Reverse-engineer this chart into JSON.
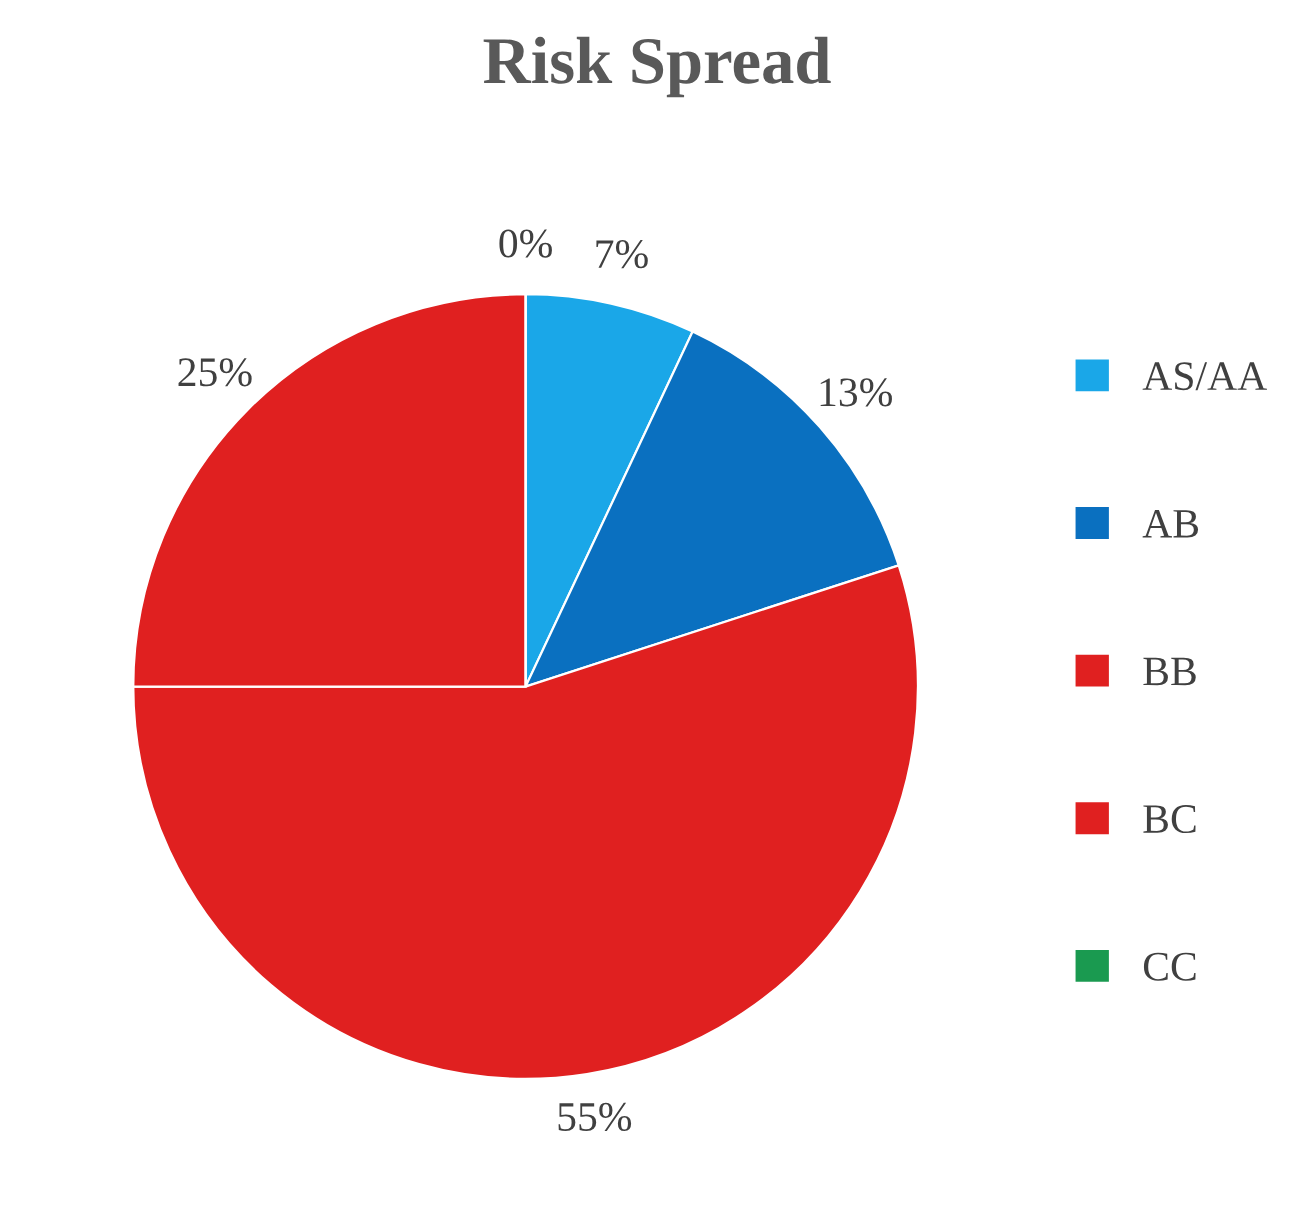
{
  "chart_data": {
    "type": "pie",
    "title": "Risk Spread",
    "categories": [
      "AS/AA",
      "AB",
      "BB",
      "BC",
      "CC"
    ],
    "values": [
      7,
      13,
      55,
      25,
      0
    ],
    "value_labels": [
      "7%",
      "13%",
      "55%",
      "25%",
      "0%"
    ],
    "colors": [
      "#1aa7e8",
      "#0a70c0",
      "#e02020",
      "#e02020",
      "#1a9a50"
    ],
    "legend": "right"
  }
}
